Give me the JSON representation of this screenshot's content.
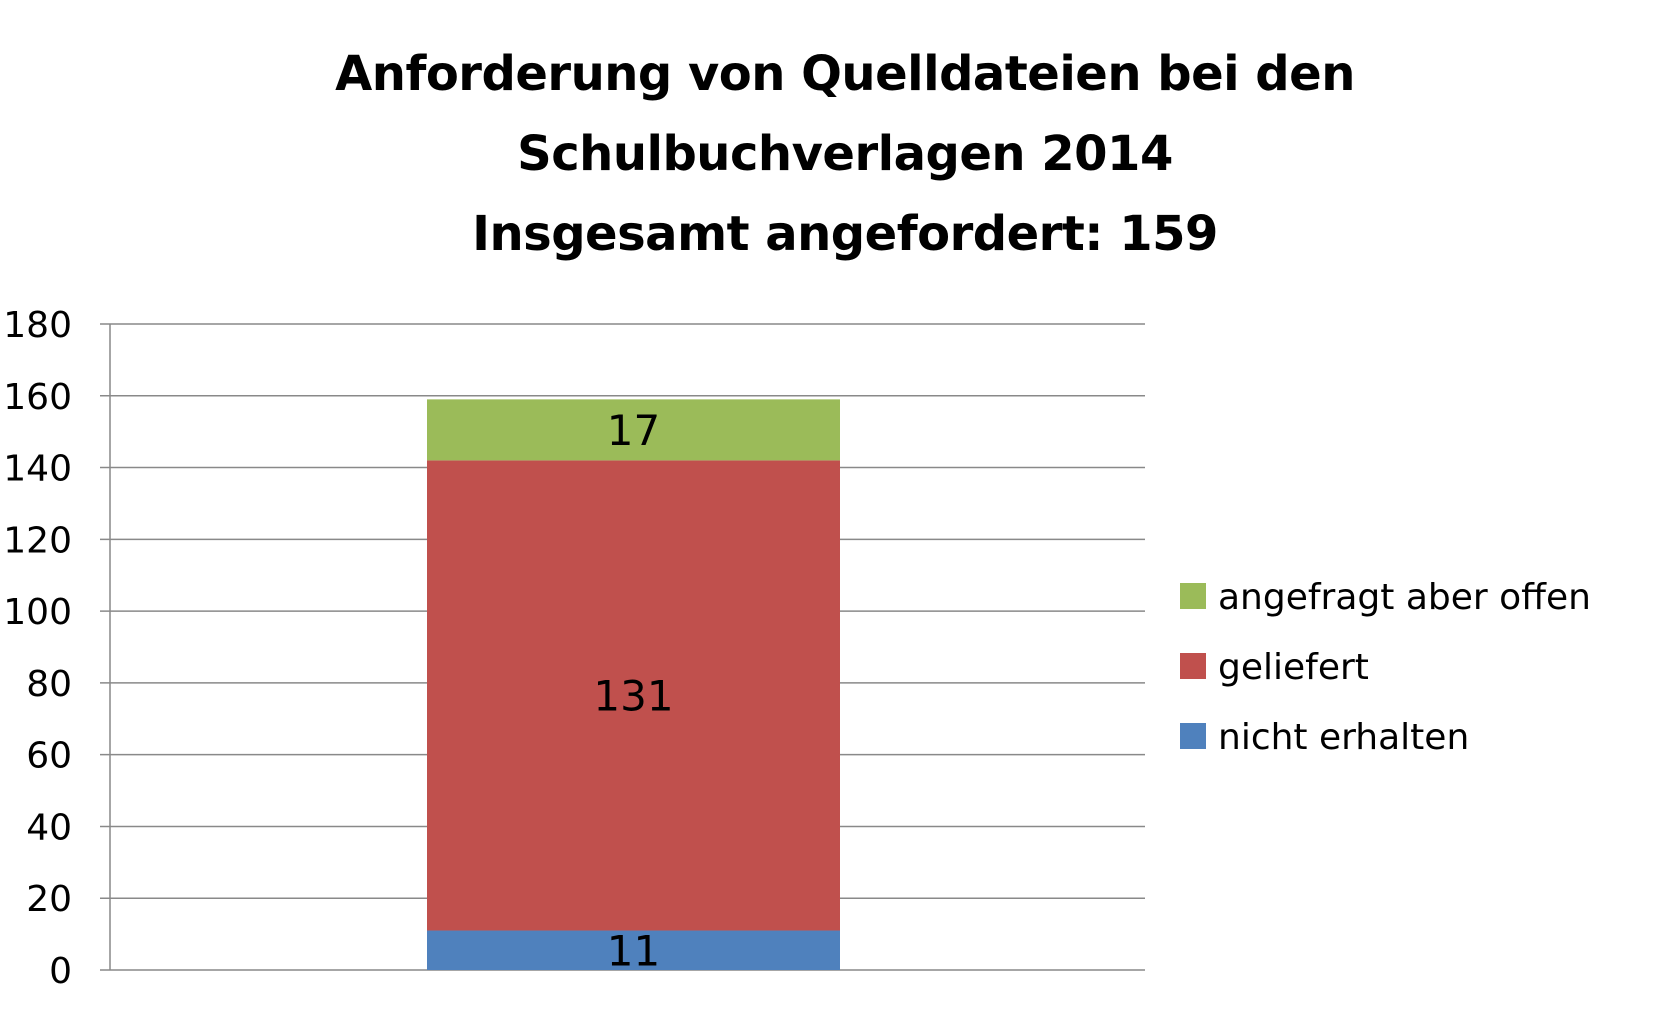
{
  "chart_data": {
    "type": "bar",
    "stacked": true,
    "title_lines": [
      "Anforderung von Quelldateien bei den",
      "Schulbuchverlagen 2014",
      "Insgesamt angefordert: 159"
    ],
    "categories": [
      ""
    ],
    "series": [
      {
        "name": "nicht erhalten",
        "values": [
          11
        ],
        "color": "#4F81BD",
        "label": "11"
      },
      {
        "name": "geliefert",
        "values": [
          131
        ],
        "color": "#C0504D",
        "label": "131"
      },
      {
        "name": "angefragt aber offen",
        "values": [
          17
        ],
        "color": "#9BBB59",
        "label": "17"
      }
    ],
    "ylim": [
      0,
      180
    ],
    "yticks": [
      "0",
      "20",
      "40",
      "60",
      "80",
      "100",
      "120",
      "140",
      "160",
      "180"
    ],
    "grid": true,
    "legend": "right",
    "legend_order": [
      "angefragt aber offen",
      "geliefert",
      "nicht erhalten"
    ],
    "gridline_color": "#898989"
  }
}
